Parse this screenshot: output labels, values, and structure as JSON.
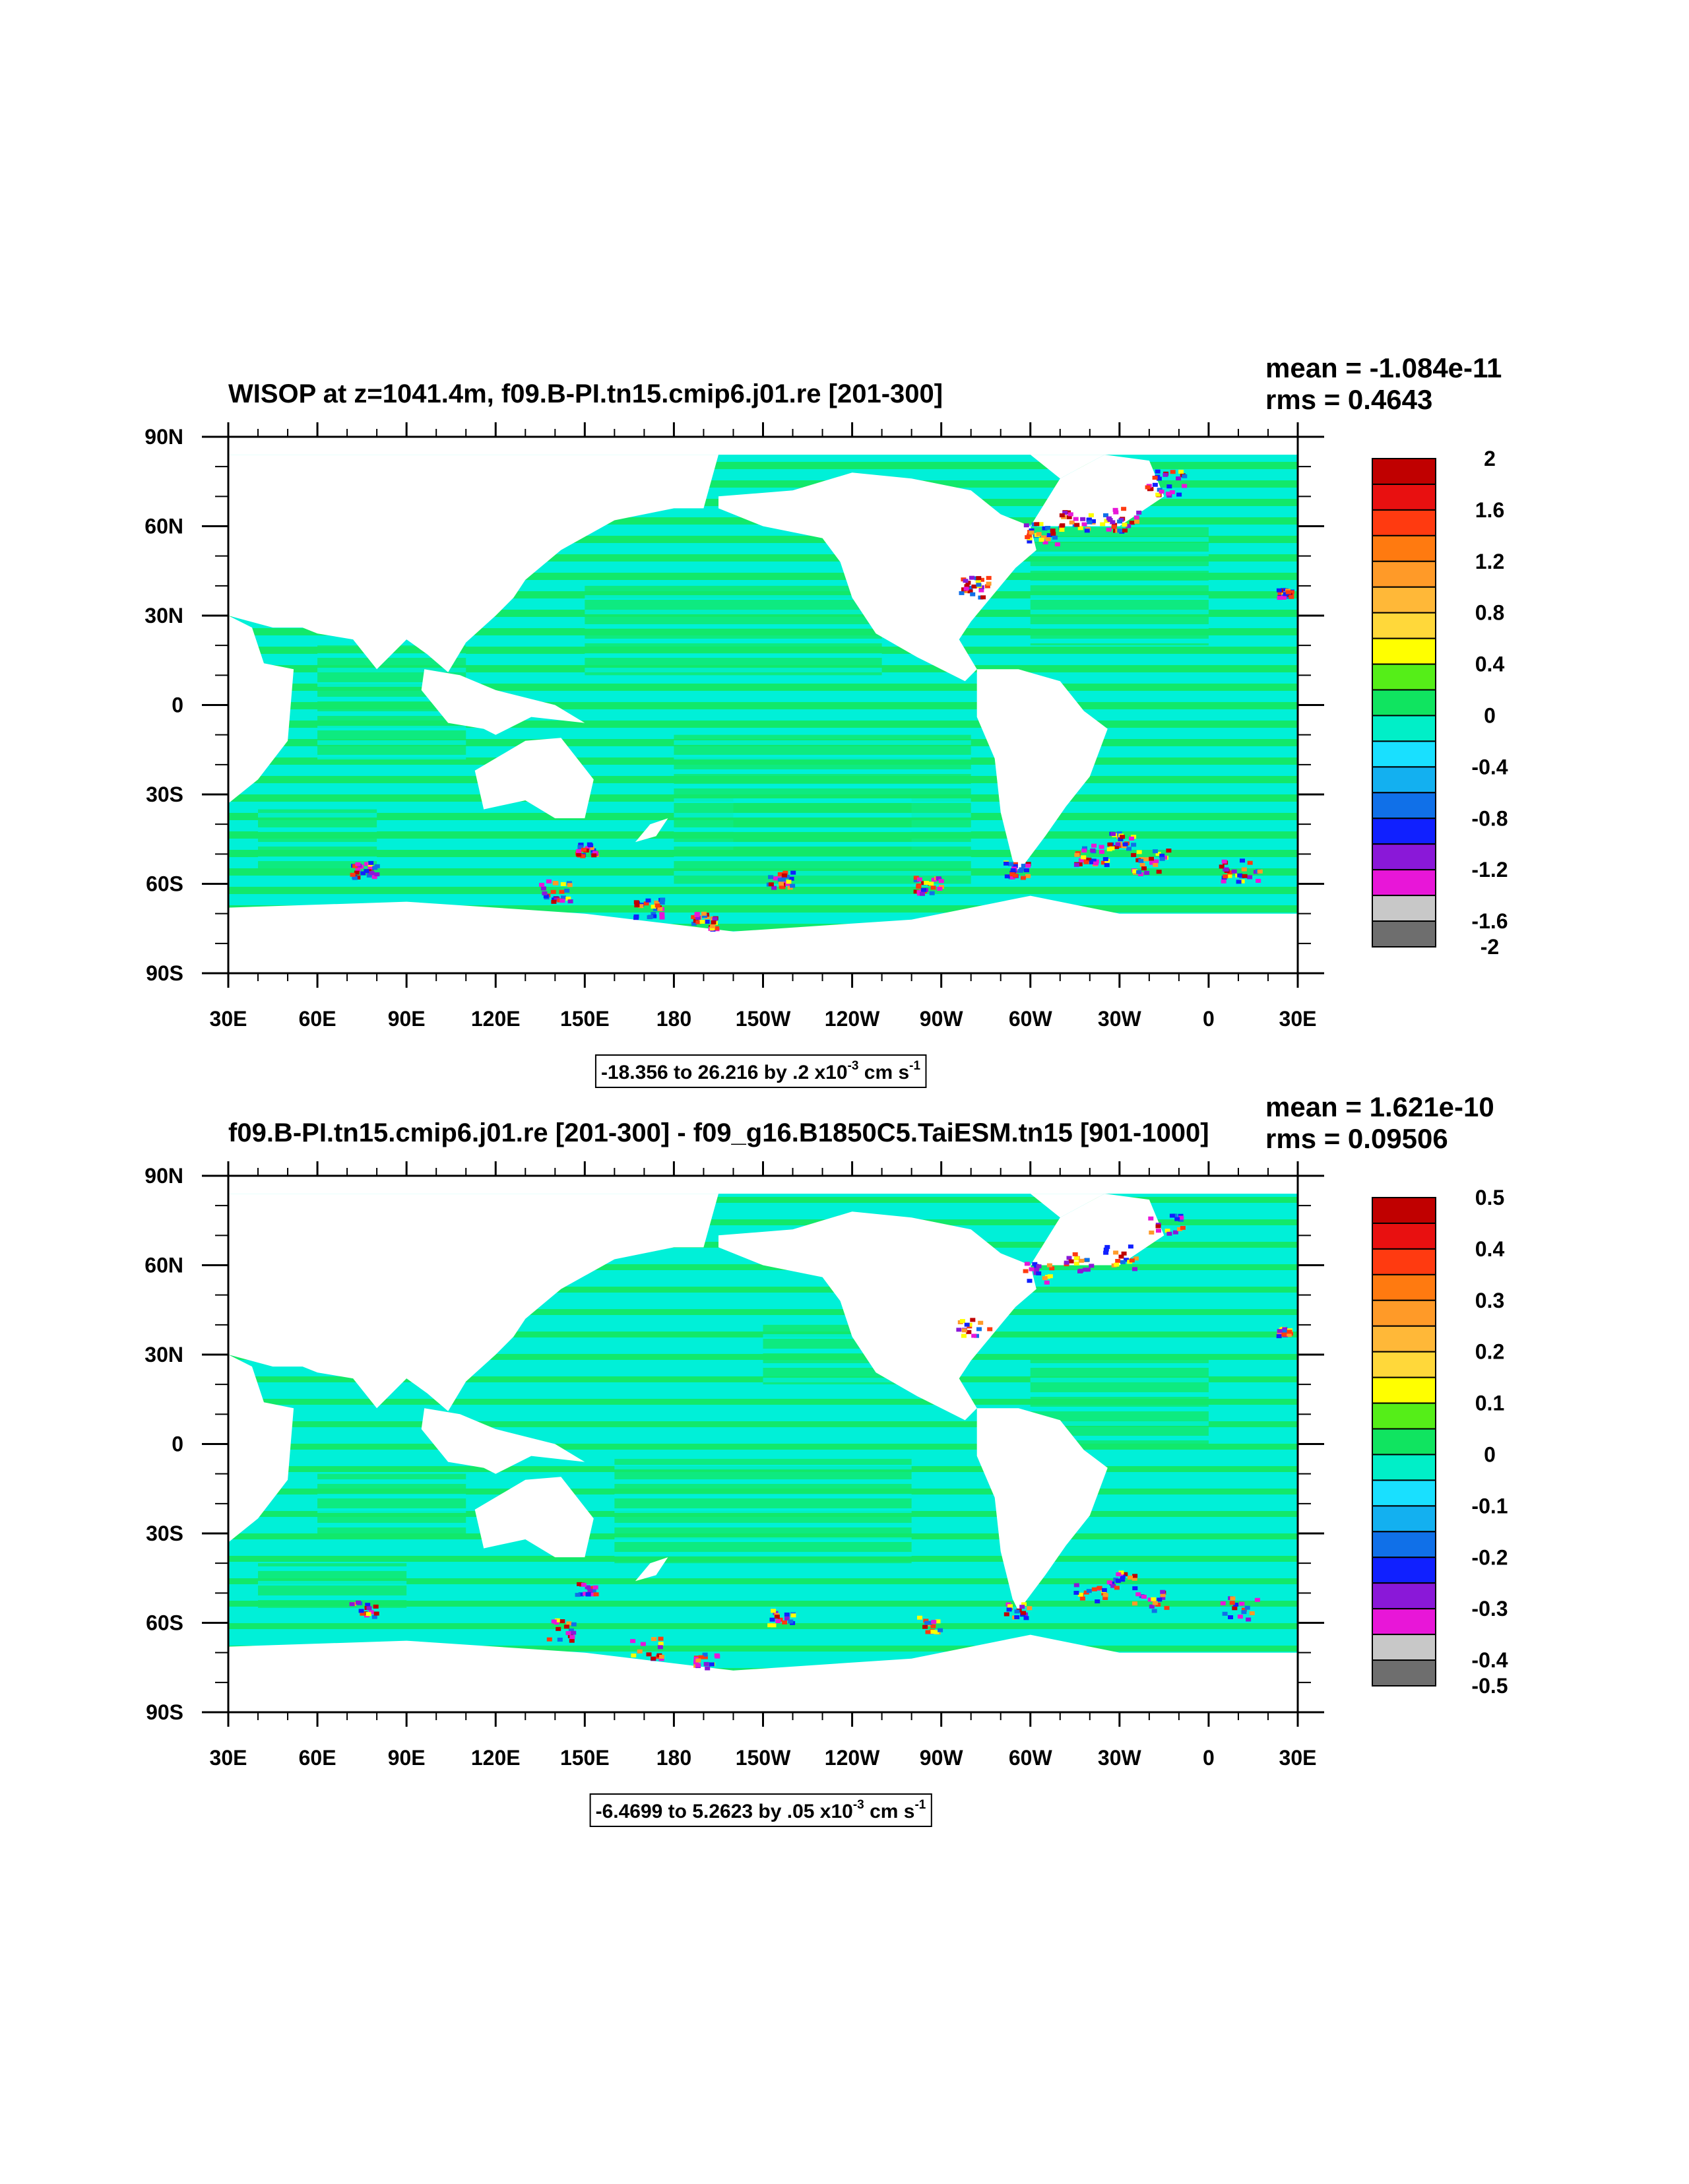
{
  "chart_data": [
    {
      "type": "heatmap",
      "title": "WISOP at z=1041.4m, f09.B-PI.tn15.cmip6.j01.re [201-300]",
      "stats": [
        "mean = -1.084e-11",
        "rms = 0.4643"
      ],
      "x_tick_labels": [
        "30E",
        "60E",
        "90E",
        "120E",
        "150E",
        "180",
        "150W",
        "120W",
        "90W",
        "60W",
        "30W",
        "0",
        "30E"
      ],
      "y_tick_labels": [
        "90N",
        "60N",
        "30N",
        "0",
        "30S",
        "60S",
        "90S"
      ],
      "xlim": [
        30,
        390
      ],
      "ylim": [
        -90,
        90
      ],
      "colorbar_levels": [
        "2",
        "1.6",
        "1.2",
        "0.8",
        "0.4",
        "0",
        "-0.4",
        "-0.8",
        "-1.2",
        "-1.6",
        "-2"
      ],
      "contour_info": {
        "text": "-18.356 to 26.216 by .2 x10",
        "exp": "-3",
        "unit": " cm s",
        "unit_exp": "-1"
      }
    },
    {
      "type": "heatmap",
      "title": "f09.B-PI.tn15.cmip6.j01.re [201-300] - f09_g16.B1850C5.TaiESM.tn15 [901-1000]",
      "stats": [
        "mean = 1.621e-10",
        "rms = 0.09506"
      ],
      "x_tick_labels": [
        "30E",
        "60E",
        "90E",
        "120E",
        "150E",
        "180",
        "150W",
        "120W",
        "90W",
        "60W",
        "30W",
        "0",
        "30E"
      ],
      "y_tick_labels": [
        "90N",
        "60N",
        "30N",
        "0",
        "30S",
        "60S",
        "90S"
      ],
      "xlim": [
        30,
        390
      ],
      "ylim": [
        -90,
        90
      ],
      "colorbar_levels": [
        "0.5",
        "0.4",
        "0.3",
        "0.2",
        "0.1",
        "0",
        "-0.1",
        "-0.2",
        "-0.3",
        "-0.4",
        "-0.5"
      ],
      "contour_info": {
        "text": "-6.4699 to 5.2623 by .05 x10",
        "exp": "-3",
        "unit": " cm s",
        "unit_exp": "-1"
      }
    }
  ],
  "colorbar_colors": [
    "#c00000",
    "#e81010",
    "#ff3a10",
    "#ff7a10",
    "#ff9a28",
    "#ffb838",
    "#ffd83a",
    "#ffff00",
    "#55ee18",
    "#10e460",
    "#00efc8",
    "#19e0ff",
    "#13b0f0",
    "#1070e8",
    "#1020ff",
    "#8a18d8",
    "#e816d8",
    "#c8c8c8",
    "#6e6e6e"
  ],
  "field_colors": {
    "ocean_main": "#00f0d8",
    "ocean_band": "#12e86a"
  }
}
